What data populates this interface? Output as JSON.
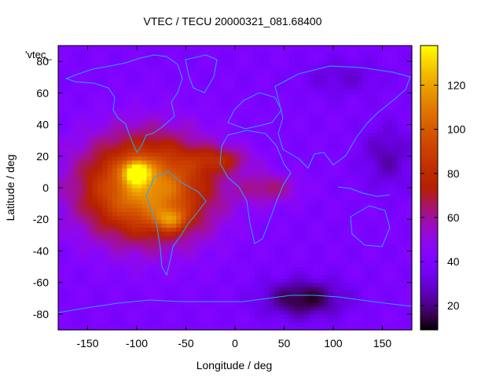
{
  "chart_data": {
    "type": "heatmap",
    "title": "VTEC / TECU 20000321_081.68400",
    "xlabel": "Longitude / deg",
    "ylabel": "Latitude / deg",
    "series_label": "'vtec_",
    "xlim": [
      -180,
      180
    ],
    "ylim": [
      -90,
      90
    ],
    "xticks": [
      -150,
      -100,
      -50,
      0,
      50,
      100,
      150
    ],
    "yticks": [
      -80,
      -60,
      -40,
      -20,
      0,
      20,
      40,
      60,
      80
    ],
    "colorbar": {
      "min": 9,
      "max": 138,
      "ticks": [
        20,
        40,
        60,
        80,
        100,
        120
      ]
    },
    "grid": {
      "lon_step": 5,
      "lat_step": 2.5
    },
    "features": {
      "background": 40,
      "anomaly": {
        "lon": -90,
        "lat": 0,
        "value": 78,
        "sigma_lon": 65,
        "sigma_lat": 32
      },
      "peaks": [
        {
          "lon": -100,
          "lat": 10,
          "value": 55,
          "sigma_lon": 12,
          "sigma_lat": 7
        },
        {
          "lon": -65,
          "lat": -20,
          "value": 35,
          "sigma_lon": 16,
          "sigma_lat": 7
        },
        {
          "lon": -15,
          "lat": 18,
          "value": 25,
          "sigma_lon": 30,
          "sigma_lat": 8
        },
        {
          "lon": 35,
          "lat": 0,
          "value": 22,
          "sigma_lon": 30,
          "sigma_lat": 10
        }
      ],
      "depletions": [
        {
          "lon": 70,
          "lat": -70,
          "value": -28,
          "sigma_lon": 40,
          "sigma_lat": 12
        },
        {
          "lon": 155,
          "lat": 20,
          "value": -15,
          "sigma_lon": 25,
          "sigma_lat": 20
        },
        {
          "lon": 110,
          "lat": 70,
          "value": -10,
          "sigma_lon": 40,
          "sigma_lat": 12
        }
      ]
    }
  }
}
